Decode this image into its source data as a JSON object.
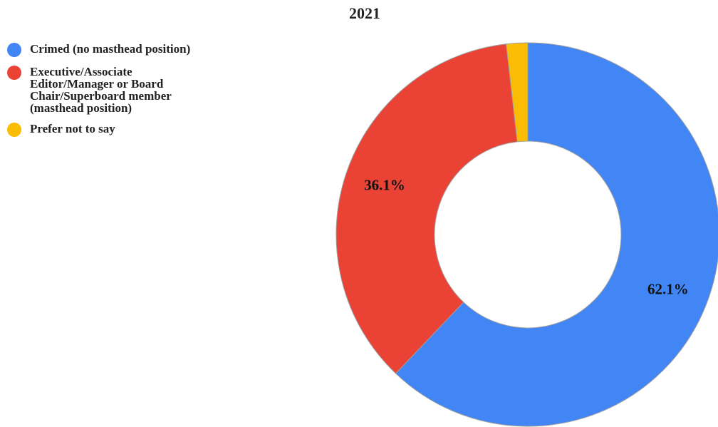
{
  "chart_data": {
    "type": "donut",
    "title": "2021",
    "categories": [
      "Crimed (no masthead position)",
      "Executive/Associate Editor/Manager or Board Chair/Superboard member (masthead position)",
      "Prefer not to say"
    ],
    "values": [
      62.1,
      36.1,
      1.8
    ],
    "value_labels": [
      "62.1%",
      "36.1%",
      null
    ],
    "colors": [
      "#4285f4",
      "#ea4335",
      "#fbbc04"
    ],
    "legend": "left"
  }
}
